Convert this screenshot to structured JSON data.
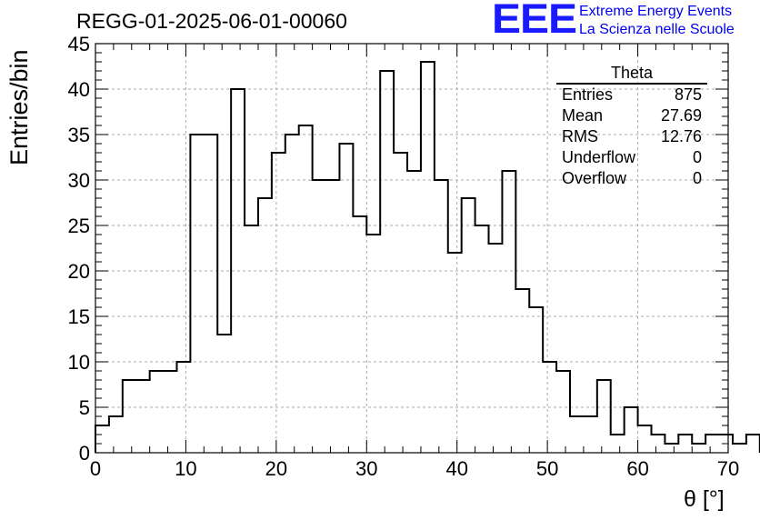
{
  "header": {
    "title": "REGG-01-2025-06-01-00060",
    "logo_text": "EEE",
    "logo_line1": "Extreme Energy Events",
    "logo_line2": "La Scienza nelle Scuole"
  },
  "stats": {
    "title": "Theta",
    "rows": [
      {
        "label": "Entries",
        "value": "875"
      },
      {
        "label": "Mean",
        "value": "27.69"
      },
      {
        "label": "RMS",
        "value": "12.76"
      },
      {
        "label": "Underflow",
        "value": "0"
      },
      {
        "label": "Overflow",
        "value": "0"
      }
    ]
  },
  "chart_data": {
    "type": "bar",
    "style": "step-histogram",
    "title": "REGG-01-2025-06-01-00060",
    "xlabel": "θ [°]",
    "ylabel": "Entries/bin",
    "xlim": [
      0,
      70
    ],
    "ylim": [
      0,
      45
    ],
    "grid": true,
    "x_ticks": [
      0,
      10,
      20,
      30,
      40,
      50,
      60,
      70
    ],
    "y_ticks": [
      0,
      5,
      10,
      15,
      20,
      25,
      30,
      35,
      40,
      45
    ],
    "bin_width": 1.5,
    "bin_start": 0,
    "values": [
      3,
      4,
      8,
      8,
      9,
      9,
      10,
      35,
      35,
      13,
      40,
      25,
      28,
      33,
      35,
      36,
      30,
      30,
      34,
      26,
      24,
      42,
      33,
      31,
      43,
      30,
      22,
      28,
      25,
      23,
      31,
      18,
      16,
      10,
      9,
      4,
      4,
      8,
      2,
      5,
      3,
      2,
      1,
      2,
      1,
      2,
      2,
      1,
      2
    ],
    "line_color": "#000000",
    "grid_color": "#aaaaaa",
    "logo_color": "#1a1aff"
  }
}
